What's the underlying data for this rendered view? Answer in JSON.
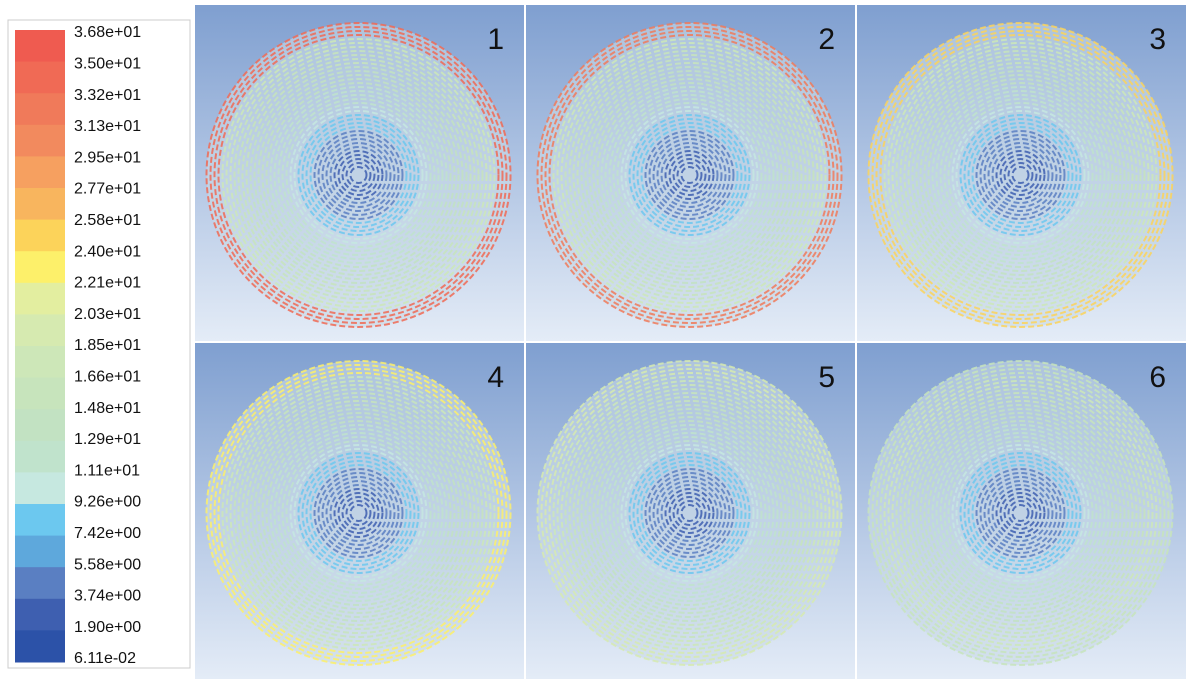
{
  "colorbar": {
    "labels": [
      "3.68e+01",
      "3.50e+01",
      "3.32e+01",
      "3.13e+01",
      "2.95e+01",
      "2.77e+01",
      "2.58e+01",
      "2.40e+01",
      "2.21e+01",
      "2.03e+01",
      "1.85e+01",
      "1.66e+01",
      "1.48e+01",
      "1.29e+01",
      "1.11e+01",
      "9.26e+00",
      "7.42e+00",
      "5.58e+00",
      "3.74e+00",
      "1.90e+00",
      "6.11e-02"
    ],
    "colors": [
      "#ef5b50",
      "#f06a55",
      "#f07a5a",
      "#f28a5e",
      "#f6a060",
      "#f8b55e",
      "#fcd35a",
      "#fdf06a",
      "#e3eea0",
      "#d6eab0",
      "#cde7b8",
      "#c7e4bc",
      "#c2e2c2",
      "#c0e3cc",
      "#c6e8e0",
      "#6cc8ef",
      "#5ea8dc",
      "#5a7fc2",
      "#3e5fb0",
      "#2c52a8"
    ]
  },
  "panels": [
    {
      "label": "1"
    },
    {
      "label": "2"
    },
    {
      "label": "3"
    },
    {
      "label": "4"
    },
    {
      "label": "5"
    },
    {
      "label": "6"
    }
  ]
}
